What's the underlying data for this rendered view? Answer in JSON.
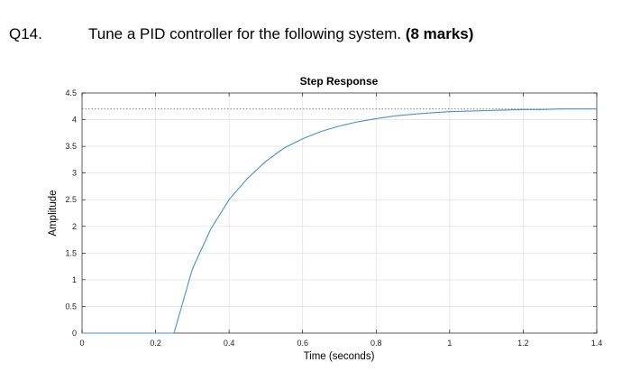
{
  "question": {
    "number": "Q14.",
    "text": "Tune a PID controller for the following system.",
    "marks": "(8 marks)"
  },
  "chart_data": {
    "type": "line",
    "title": "Step Response",
    "xlabel": "Time (seconds)",
    "ylabel": "Amplitude",
    "xlim": [
      0,
      1.4
    ],
    "ylim": [
      0,
      4.5
    ],
    "xticks": [
      0,
      0.2,
      0.4,
      0.6,
      0.8,
      1,
      1.2,
      1.4
    ],
    "xtick_labels": [
      "0",
      "0.2",
      "0.4",
      "0.6",
      "0.8",
      "1",
      "1.2",
      "1.4"
    ],
    "yticks": [
      0,
      0.5,
      1,
      1.5,
      2,
      2.5,
      3,
      3.5,
      4,
      4.5
    ],
    "ytick_labels": [
      "0",
      "0.5",
      "1",
      "1.5",
      "2",
      "2.5",
      "3",
      "3.5",
      "4",
      "4.5"
    ],
    "grid": true,
    "steady_state_value": 4.2,
    "series": [
      {
        "color": "#4a8fcf",
        "x": [
          0,
          0.05,
          0.1,
          0.15,
          0.2,
          0.25,
          0.3,
          0.35,
          0.4,
          0.45,
          0.5,
          0.55,
          0.6,
          0.65,
          0.7,
          0.75,
          0.8,
          0.85,
          0.9,
          0.95,
          1.0,
          1.05,
          1.1,
          1.15,
          1.2,
          1.25,
          1.3,
          1.35,
          1.4
        ],
        "y": [
          0,
          0,
          0,
          0,
          0,
          0,
          1.2,
          1.95,
          2.5,
          2.9,
          3.22,
          3.47,
          3.64,
          3.78,
          3.88,
          3.96,
          4.02,
          4.07,
          4.1,
          4.13,
          4.15,
          4.16,
          4.17,
          4.18,
          4.19,
          4.19,
          4.2,
          4.2,
          4.2
        ]
      }
    ]
  }
}
